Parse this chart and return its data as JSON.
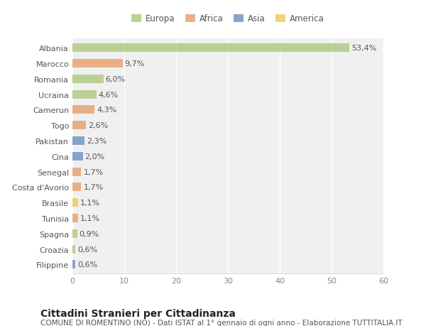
{
  "countries": [
    "Albania",
    "Marocco",
    "Romania",
    "Ucraina",
    "Camerun",
    "Togo",
    "Pakistan",
    "Cina",
    "Senegal",
    "Costa d'Avorio",
    "Brasile",
    "Tunisia",
    "Spagna",
    "Croazia",
    "Filippine"
  ],
  "values": [
    53.4,
    9.7,
    6.0,
    4.6,
    4.3,
    2.6,
    2.3,
    2.0,
    1.7,
    1.7,
    1.1,
    1.1,
    0.9,
    0.6,
    0.6
  ],
  "labels": [
    "53,4%",
    "9,7%",
    "6,0%",
    "4,6%",
    "4,3%",
    "2,6%",
    "2,3%",
    "2,0%",
    "1,7%",
    "1,7%",
    "1,1%",
    "1,1%",
    "0,9%",
    "0,6%",
    "0,6%"
  ],
  "colors": [
    "#b5cd8a",
    "#e8a87c",
    "#b5cd8a",
    "#b5cd8a",
    "#e8a87c",
    "#e8a87c",
    "#7a9cc9",
    "#7a9cc9",
    "#e8a87c",
    "#e8a87c",
    "#f0cc6a",
    "#e8a87c",
    "#b5cd8a",
    "#b5cd8a",
    "#7a9cc9"
  ],
  "legend_labels": [
    "Europa",
    "Africa",
    "Asia",
    "America"
  ],
  "legend_colors": [
    "#b5cd8a",
    "#e8a87c",
    "#7a9cc9",
    "#f0cc6a"
  ],
  "xlim": [
    0,
    60
  ],
  "xticks": [
    0,
    10,
    20,
    30,
    40,
    50,
    60
  ],
  "title": "Cittadini Stranieri per Cittadinanza",
  "subtitle": "COMUNE DI ROMENTINO (NO) - Dati ISTAT al 1° gennaio di ogni anno - Elaborazione TUTTITALIA.IT",
  "bg_color": "#ffffff",
  "plot_bg_color": "#f0f0f0",
  "bar_height": 0.55,
  "grid_color": "#ffffff",
  "title_fontsize": 10,
  "subtitle_fontsize": 7.5,
  "label_fontsize": 8,
  "tick_fontsize": 8,
  "legend_fontsize": 8.5
}
